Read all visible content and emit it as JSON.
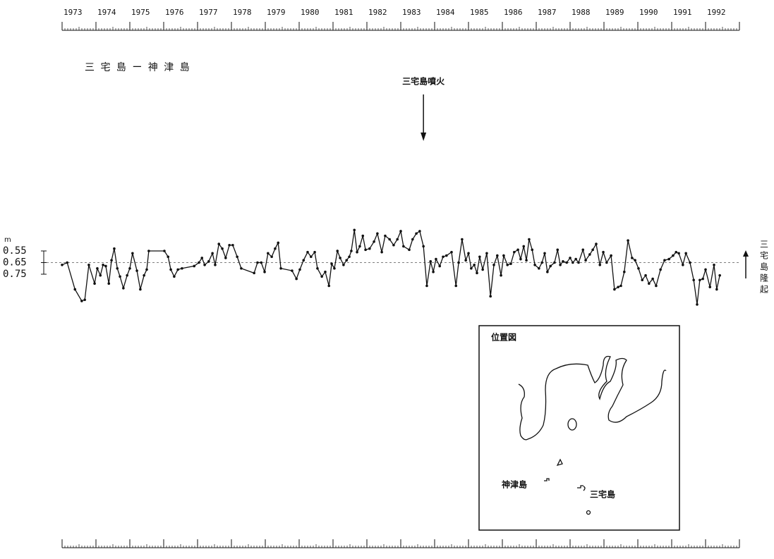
{
  "chart_data": {
    "type": "line",
    "title": "三 宅 島 ー 神 津 島",
    "y_unit": "m",
    "right_label": "三宅島隆起",
    "annotations": [
      {
        "text": "三宅島噴火",
        "x": 1983.67
      }
    ],
    "xlim": [
      1973,
      1993
    ],
    "xticks": [
      1973,
      1974,
      1975,
      1976,
      1977,
      1978,
      1979,
      1980,
      1981,
      1982,
      1983,
      1984,
      1985,
      1986,
      1987,
      1988,
      1989,
      1990,
      1991,
      1992
    ],
    "ylim": [
      1.05,
      0.3
    ],
    "yticks": [
      0.55,
      0.65,
      0.75
    ],
    "reference_line": 0.65,
    "color": "#111111",
    "x": [
      1973.0,
      1973.15,
      1973.38,
      1973.58,
      1973.67,
      1973.79,
      1973.96,
      1974.04,
      1974.13,
      1974.21,
      1974.29,
      1974.38,
      1974.46,
      1974.54,
      1974.63,
      1974.71,
      1974.81,
      1974.92,
      1975.0,
      1975.08,
      1975.21,
      1975.31,
      1975.42,
      1975.5,
      1975.56,
      1976.02,
      1976.13,
      1976.21,
      1976.31,
      1976.42,
      1976.54,
      1976.9,
      1977.04,
      1977.13,
      1977.21,
      1977.33,
      1977.44,
      1977.52,
      1977.63,
      1977.73,
      1977.83,
      1977.94,
      1978.04,
      1978.17,
      1978.29,
      1978.67,
      1978.77,
      1978.88,
      1978.98,
      1979.08,
      1979.19,
      1979.29,
      1979.38,
      1979.46,
      1979.79,
      1979.92,
      1980.02,
      1980.13,
      1980.25,
      1980.35,
      1980.46,
      1980.54,
      1980.67,
      1980.77,
      1980.88,
      1980.96,
      1981.04,
      1981.13,
      1981.21,
      1981.31,
      1981.4,
      1981.48,
      1981.54,
      1981.63,
      1981.71,
      1981.79,
      1981.88,
      1981.96,
      1982.08,
      1982.21,
      1982.31,
      1982.44,
      1982.54,
      1982.67,
      1982.79,
      1982.9,
      1983.0,
      1983.08,
      1983.25,
      1983.35,
      1983.46,
      1983.56,
      1983.67,
      1983.77,
      1983.88,
      1983.96,
      1984.04,
      1984.15,
      1984.25,
      1984.35,
      1984.5,
      1984.63,
      1984.71,
      1984.81,
      1984.92,
      1985.0,
      1985.08,
      1985.17,
      1985.25,
      1985.33,
      1985.42,
      1985.54,
      1985.65,
      1985.75,
      1985.85,
      1985.96,
      1986.04,
      1986.15,
      1986.25,
      1986.35,
      1986.46,
      1986.54,
      1986.63,
      1986.71,
      1986.79,
      1986.88,
      1986.96,
      1987.08,
      1987.17,
      1987.25,
      1987.33,
      1987.42,
      1987.54,
      1987.63,
      1987.71,
      1987.79,
      1987.9,
      1988.0,
      1988.08,
      1988.17,
      1988.25,
      1988.38,
      1988.46,
      1988.58,
      1988.67,
      1988.77,
      1988.88,
      1988.98,
      1989.08,
      1989.21,
      1989.31,
      1989.42,
      1989.5,
      1989.6,
      1989.71,
      1989.83,
      1989.92,
      1990.02,
      1990.13,
      1990.23,
      1990.33,
      1990.44,
      1990.54,
      1990.67,
      1990.79,
      1990.92,
      1991.04,
      1991.13,
      1991.21,
      1991.33,
      1991.42,
      1991.54,
      1991.65,
      1991.75,
      1991.83,
      1991.92,
      1992.0,
      1992.13,
      1992.25,
      1992.33,
      1992.42
    ],
    "values": [
      0.67,
      0.65,
      0.88,
      0.98,
      0.97,
      0.67,
      0.83,
      0.7,
      0.76,
      0.67,
      0.68,
      0.83,
      0.63,
      0.53,
      0.7,
      0.77,
      0.87,
      0.76,
      0.7,
      0.57,
      0.72,
      0.88,
      0.76,
      0.71,
      0.55,
      0.55,
      0.6,
      0.71,
      0.77,
      0.71,
      0.7,
      0.68,
      0.65,
      0.61,
      0.67,
      0.64,
      0.57,
      0.67,
      0.49,
      0.53,
      0.61,
      0.5,
      0.5,
      0.6,
      0.7,
      0.74,
      0.65,
      0.65,
      0.73,
      0.57,
      0.6,
      0.53,
      0.48,
      0.7,
      0.72,
      0.79,
      0.71,
      0.63,
      0.56,
      0.6,
      0.56,
      0.7,
      0.77,
      0.73,
      0.85,
      0.66,
      0.7,
      0.55,
      0.61,
      0.67,
      0.63,
      0.6,
      0.55,
      0.37,
      0.56,
      0.51,
      0.42,
      0.54,
      0.53,
      0.47,
      0.4,
      0.56,
      0.42,
      0.45,
      0.5,
      0.45,
      0.38,
      0.51,
      0.54,
      0.45,
      0.4,
      0.38,
      0.51,
      0.85,
      0.64,
      0.73,
      0.62,
      0.68,
      0.6,
      0.59,
      0.56,
      0.85,
      0.65,
      0.45,
      0.63,
      0.57,
      0.7,
      0.67,
      0.74,
      0.6,
      0.71,
      0.57,
      0.94,
      0.67,
      0.59,
      0.76,
      0.59,
      0.67,
      0.66,
      0.56,
      0.54,
      0.62,
      0.51,
      0.63,
      0.45,
      0.54,
      0.67,
      0.7,
      0.65,
      0.57,
      0.73,
      0.68,
      0.65,
      0.54,
      0.67,
      0.64,
      0.65,
      0.61,
      0.65,
      0.62,
      0.65,
      0.54,
      0.63,
      0.58,
      0.54,
      0.49,
      0.67,
      0.56,
      0.65,
      0.59,
      0.88,
      0.86,
      0.85,
      0.73,
      0.46,
      0.61,
      0.63,
      0.7,
      0.8,
      0.76,
      0.83,
      0.79,
      0.85,
      0.71,
      0.63,
      0.62,
      0.59,
      0.56,
      0.57,
      0.67,
      0.57,
      0.65,
      0.8,
      1.01,
      0.8,
      0.79,
      0.71,
      0.86,
      0.67,
      0.88,
      0.76
    ]
  },
  "inset": {
    "title": "位置図",
    "labels": [
      "神津島",
      "三宅島"
    ]
  }
}
